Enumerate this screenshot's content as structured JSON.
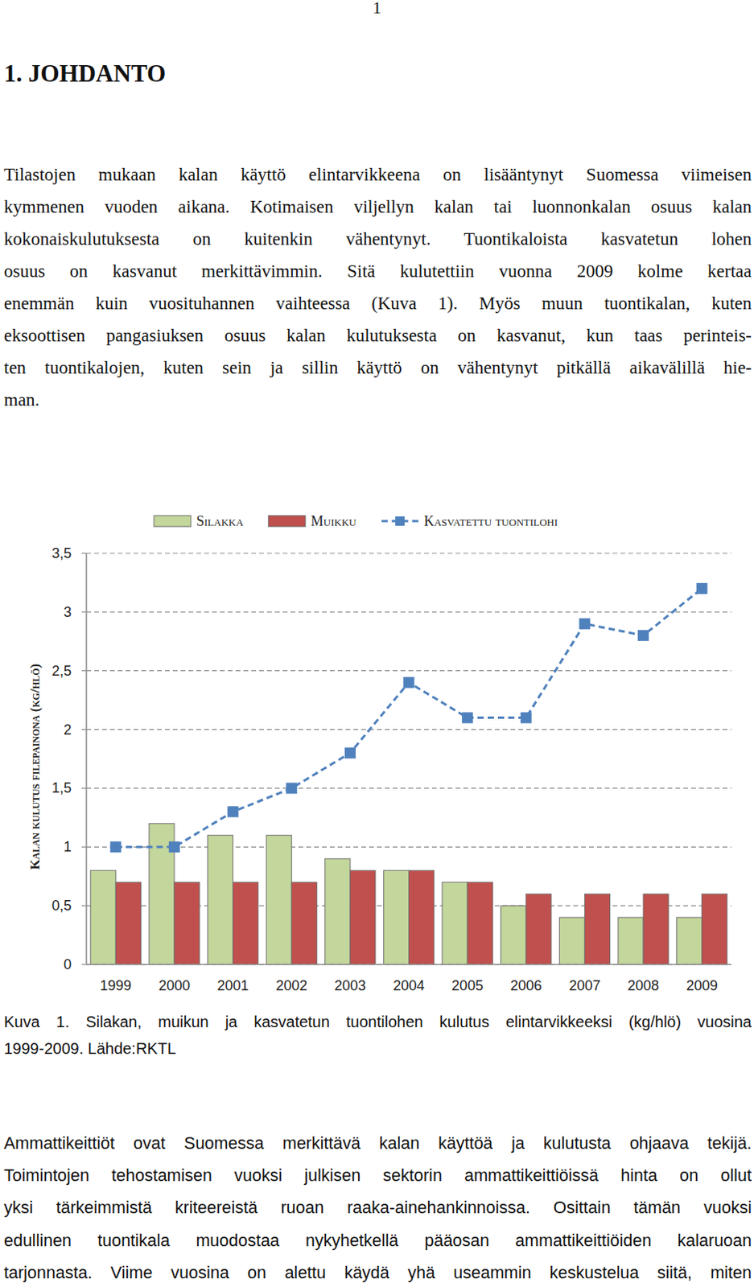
{
  "page_number": "1",
  "heading": "1. JOHDANTO",
  "intro": {
    "lines": [
      "Tilastojen mukaan kalan käyttö elintarvikkeena on lisääntynyt Suomessa viimeisen",
      "kymmenen vuoden aikana. Kotimaisen viljellyn kalan tai luonnonkalan osuus kalan",
      "kokonaiskulutuksesta on kuitenkin vähentynyt. Tuontikaloista kasvatetun lohen",
      "osuus on kasvanut merkittävimmin. Sitä kulutettiin vuonna 2009 kolme kertaa",
      "enemmän kuin vuosituhannen vaihteessa (Kuva 1). Myös muun tuontikalan, kuten",
      "eksoottisen pangasiuksen osuus kalan kulutuksesta on kasvanut, kun taas perinteis-",
      "ten tuontikalojen, kuten sein ja sillin käyttö on vähentynyt pitkällä aikavälillä hie-",
      "man."
    ]
  },
  "chart_data": {
    "type": "bar",
    "y_label": "Kalan kulutus filepainona (kg/hlö)",
    "categories": [
      "1999",
      "2000",
      "2001",
      "2002",
      "2003",
      "2004",
      "2005",
      "2006",
      "2007",
      "2008",
      "2009"
    ],
    "series": [
      {
        "name": "Silakka",
        "color": "#c3d69b",
        "values": [
          0.8,
          1.2,
          1.1,
          1.1,
          0.9,
          0.8,
          0.7,
          0.5,
          0.4,
          0.4,
          0.4
        ]
      },
      {
        "name": "Muikku",
        "color": "#c0504d",
        "values": [
          0.7,
          0.7,
          0.7,
          0.7,
          0.8,
          0.8,
          0.7,
          0.6,
          0.6,
          0.6,
          0.6
        ]
      },
      {
        "name": "Kasvatettu tuontilohi",
        "color": "#4f81bd",
        "type": "line",
        "line_style": "dashed",
        "marker": "square",
        "values": [
          1.0,
          1.0,
          1.3,
          1.5,
          1.8,
          2.4,
          2.1,
          2.1,
          2.9,
          2.8,
          3.2
        ]
      }
    ],
    "ylim": [
      0,
      3.5
    ],
    "yticks": [
      0,
      {
        "value": 0.5,
        "label": "0,5"
      },
      1,
      {
        "value": 1.5,
        "label": "1,5"
      },
      2,
      {
        "value": 2.5,
        "label": "2,5"
      },
      3,
      {
        "value": 3.5,
        "label": "3,5"
      }
    ],
    "grid": true,
    "legend": "top"
  },
  "caption": {
    "lines": [
      "Kuva 1. Silakan, muikun ja kasvatetun tuontilohen kulutus elintarvikkeeksi (kg/hlö) vuosina",
      "1999-2009. Lähde:RKTL"
    ]
  },
  "body": {
    "lines": [
      "Ammattikeittiöt ovat Suomessa merkittävä kalan käyttöä ja kulutusta ohjaava tekijä.",
      "Toimintojen tehostamisen vuoksi julkisen sektorin ammattikeittiöissä hinta on ollut",
      "yksi tärkeimmistä kriteereistä ruoan raaka-ainehankinnoissa. Osittain tämän vuoksi",
      "edullinen tuontikala muodostaa nykyhetkellä pääosan ammattikeittiöiden kalaruoan",
      "tarjonnasta. Viime vuosina on alettu käydä yhä useammin keskustelua siitä, miten"
    ]
  }
}
